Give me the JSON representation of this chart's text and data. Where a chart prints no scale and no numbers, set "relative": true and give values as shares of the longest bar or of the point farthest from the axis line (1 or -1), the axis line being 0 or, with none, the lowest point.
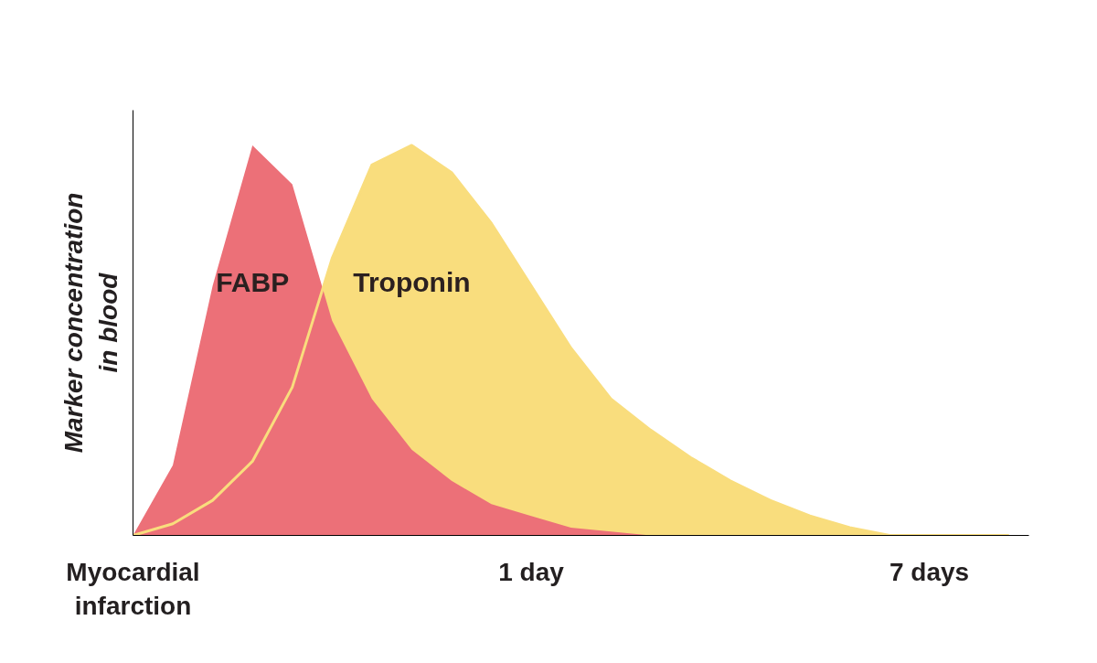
{
  "chart_data": {
    "type": "area",
    "relative": true,
    "ylabel": "Marker concentration in blood",
    "categories": [
      "Myocardial infarction",
      null,
      null,
      null,
      null,
      null,
      null,
      null,
      null,
      null,
      "1 day",
      null,
      null,
      null,
      null,
      null,
      null,
      null,
      null,
      null,
      "7 days",
      null,
      null
    ],
    "grid": false,
    "series": [
      {
        "name": "Troponin",
        "color": "#f9dd7d",
        "values": [
          0,
          0.03,
          0.09,
          0.19,
          0.38,
          0.71,
          0.95,
          1,
          0.93,
          0.8,
          0.64,
          0.48,
          0.35,
          0.27,
          0.2,
          0.14,
          0.09,
          0.05,
          0.02,
          0,
          0,
          0,
          0
        ]
      },
      {
        "name": "FABP",
        "color": "#ec7078",
        "values": [
          0,
          0.18,
          0.64,
          1,
          0.9,
          0.55,
          0.35,
          0.22,
          0.14,
          0.08,
          0.05,
          0.02,
          0.01,
          0,
          null,
          null,
          null,
          null,
          null,
          null,
          null,
          null,
          null
        ]
      }
    ]
  }
}
